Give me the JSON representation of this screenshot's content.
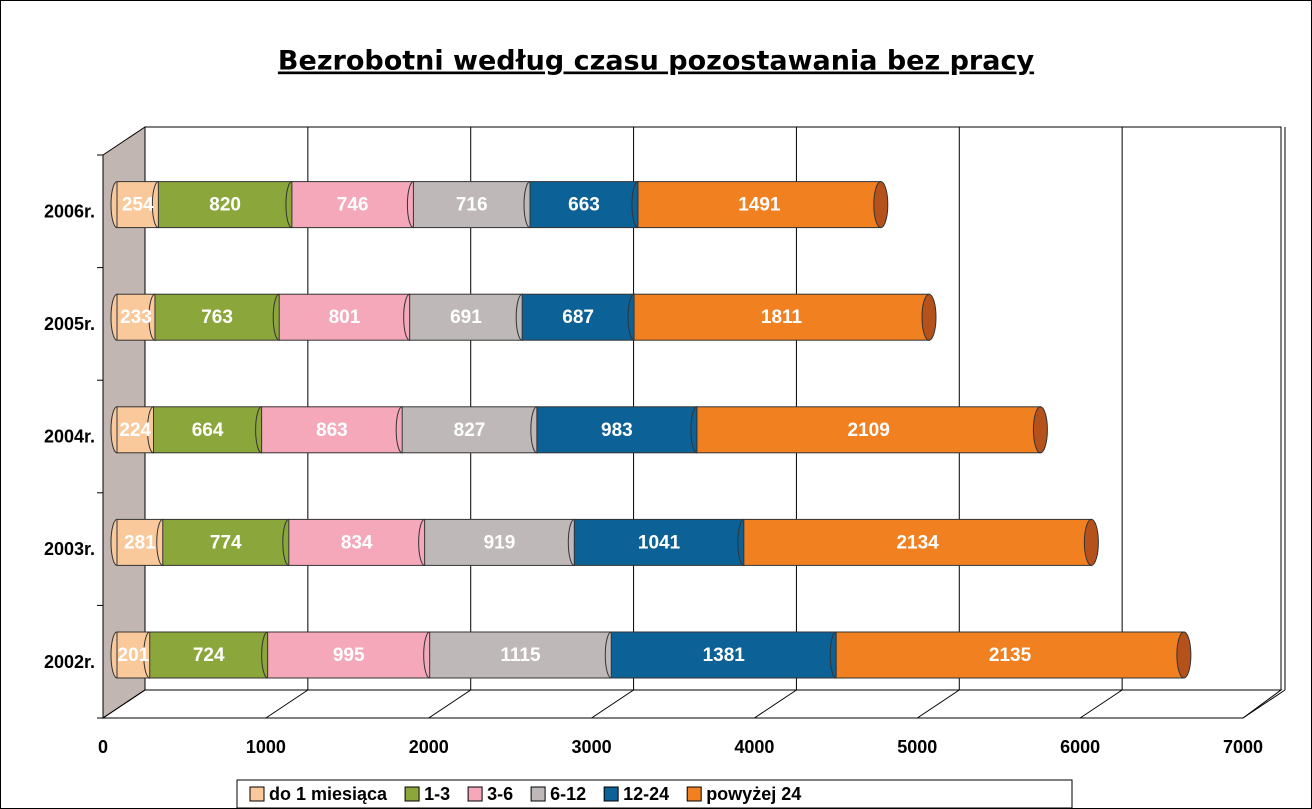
{
  "chart_data": {
    "type": "bar3d_stacked_horizontal",
    "title": "Bezrobotni według czasu pozostawania bez pracy",
    "categories": [
      "2002r.",
      "2003r.",
      "2004r.",
      "2005r.",
      "2006r."
    ],
    "series": [
      {
        "name": "do 1 miesiąca",
        "color": "#f9c99c",
        "values": [
          201,
          281,
          224,
          233,
          254
        ]
      },
      {
        "name": "1-3",
        "color": "#8ba63a",
        "values": [
          724,
          774,
          664,
          763,
          820
        ]
      },
      {
        "name": "3-6",
        "color": "#f5a8ba",
        "values": [
          995,
          834,
          863,
          801,
          746
        ]
      },
      {
        "name": "6-12",
        "color": "#bfb8b8",
        "values": [
          1115,
          919,
          827,
          691,
          716
        ]
      },
      {
        "name": "12-24",
        "color": "#0c6197",
        "values": [
          1381,
          1041,
          983,
          687,
          663
        ]
      },
      {
        "name": "powyżej 24",
        "color": "#f18020",
        "values": [
          2135,
          2134,
          2109,
          1811,
          1491
        ]
      }
    ],
    "xlim": [
      0,
      7000
    ],
    "xticks": [
      0,
      1000,
      2000,
      3000,
      4000,
      5000,
      6000,
      7000
    ],
    "grid": true,
    "legend": "bottom"
  }
}
